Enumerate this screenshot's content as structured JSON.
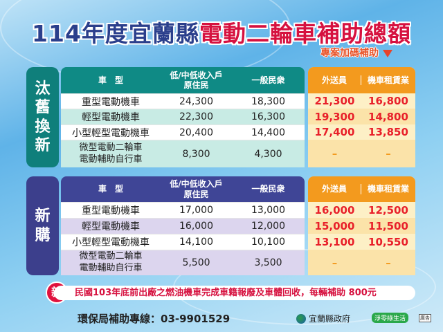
{
  "title": {
    "part1": "114年度宜蘭縣",
    "part2": "電動二輪車補助總額"
  },
  "bonus_label": "專案加碼補助",
  "colors": {
    "teal": "#0f8a85",
    "navy": "#3f4596",
    "orange": "#f39a1e",
    "red": "#e8202a"
  },
  "headers": {
    "type": "車　型",
    "low_income": "低/中低收入戶\n原住民",
    "general": "一般民衆",
    "courier": "外送員",
    "rental": "機車租賃業"
  },
  "replace": {
    "label": [
      "汰",
      "舊",
      "換",
      "新"
    ],
    "rows": [
      {
        "type": "重型電動機車",
        "low": "24,300",
        "gen": "18,300",
        "courier": "21,300",
        "rental": "16,800"
      },
      {
        "type": "輕型電動機車",
        "low": "22,300",
        "gen": "16,300",
        "courier": "19,300",
        "rental": "14,800"
      },
      {
        "type": "小型輕型電動機車",
        "low": "20,400",
        "gen": "14,400",
        "courier": "17,400",
        "rental": "13,850"
      },
      {
        "type": "微型電動二輪車\n電動輔助自行車",
        "low": "8,300",
        "gen": "4,300",
        "courier": "–",
        "rental": "–"
      }
    ]
  },
  "new": {
    "label": [
      "新",
      "購"
    ],
    "rows": [
      {
        "type": "重型電動機車",
        "low": "17,000",
        "gen": "13,000",
        "courier": "16,000",
        "rental": "12,500"
      },
      {
        "type": "輕型電動機車",
        "low": "16,000",
        "gen": "12,000",
        "courier": "15,000",
        "rental": "11,500"
      },
      {
        "type": "小型輕型電動機車",
        "low": "14,100",
        "gen": "10,100",
        "courier": "13,100",
        "rental": "10,550"
      },
      {
        "type": "微型電動二輪車\n電動輔助自行車",
        "low": "5,500",
        "gen": "3,500",
        "courier": "–",
        "rental": "–"
      }
    ]
  },
  "banner": {
    "badge": "新",
    "text": "民國103年底前出廠之燃油機車完成車籍報廢及車體回收，每輛補助 800元"
  },
  "footer": {
    "hotline": "環保局補助專線：03-9901529",
    "gov": "宜蘭縣政府",
    "net_zero": "淨零綠生活",
    "ad": "廣告"
  }
}
